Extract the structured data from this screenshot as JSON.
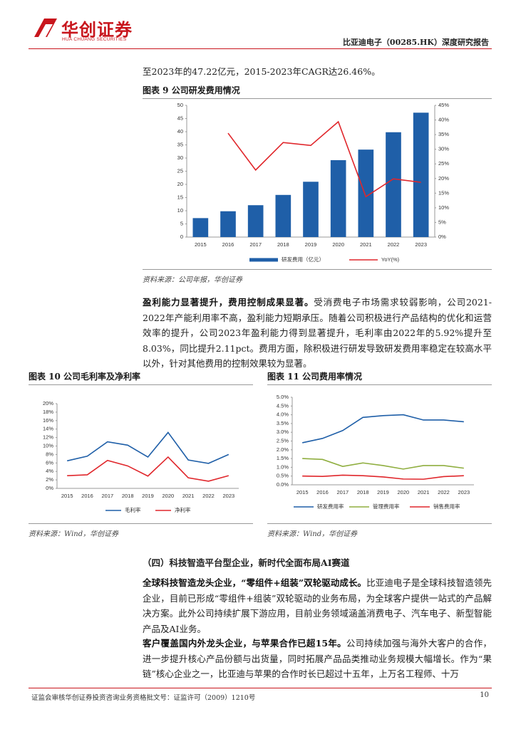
{
  "header": {
    "logo_cn": "华创证券",
    "logo_en": "HUA CHUANG SECURITIES",
    "report_title": "比亚迪电子（00285.HK）深度研究报告"
  },
  "intro": "至2023年的47.22亿元，2015-2023年CAGR达26.46%。",
  "para_profit": {
    "lead": "盈利能力显著提升，费用控制成果显著。",
    "text": "受消费电子市场需求较弱影响，公司2021-2022年产能利用率不高，盈利能力短期承压。随着公司积极进行产品结构的优化和运营效率的提升，公司2023年盈利能力得到显著提升，毛利率由2022年的5.92%提升至8.03%，同比提升2.11pct。费用方面，除积极进行研发导致研发费用率稳定在较高水平以外，针对其他费用的控制效果较为显著。"
  },
  "section_heading": "（四）科技智造平台型企业，新时代全面布局AI赛道",
  "para_leader": {
    "lead": "全球科技智造龙头企业，“零组件+组装”双轮驱动成长。",
    "text": "比亚迪电子是全球科技智造领先企业，目前已形成“零组件+组装”双轮驱动的业务布局，为全球客户提供一站式的产品解决方案。此外公司持续扩展下游应用，目前业务领域涵盖消费电子、汽车电子、新型智能产品及AI业务。"
  },
  "para_apple": {
    "lead": "客户覆盖国内外龙头企业，与苹果合作已超15年。",
    "text": "公司持续加强与海外大客户的合作，进一步提升核心产品份额与出货量，同时拓展产品品类推动业务规模大幅增长。作为“果链”核心企业之一，比亚迪与苹果的合作时长已超过十五年，上万名工程师、十万"
  },
  "footer": {
    "disclaimer": "证监会审核华创证券投资咨询业务资格批文号：证监许可（2009）1210号",
    "page": "10"
  },
  "chart_data": [
    {
      "type": "bar",
      "title": "图表 9 公司研发费用情况",
      "source": "资料来源：公司年报，华创证券",
      "categories": [
        "2015",
        "2016",
        "2017",
        "2018",
        "2019",
        "2020",
        "2021",
        "2022",
        "2023"
      ],
      "series": [
        {
          "name": "研发费用（亿元）",
          "color": "#1f5fa8",
          "type": "bar",
          "values": [
            7.2,
            9.8,
            12.1,
            16.0,
            21.0,
            29.2,
            33.2,
            39.8,
            47.22
          ]
        },
        {
          "name": "YoY(%)",
          "color": "#e0262b",
          "type": "line",
          "axis": "y2",
          "values": [
            null,
            35.5,
            22.9,
            32.3,
            31.3,
            39.4,
            13.8,
            19.9,
            18.7
          ]
        }
      ],
      "ylim": [
        0,
        50
      ],
      "yticks": [
        0,
        5,
        10,
        15,
        20,
        25,
        30,
        35,
        40,
        45,
        50
      ],
      "y2lim": [
        0,
        45
      ],
      "y2ticks": [
        {
          "value": 0,
          "label": "0%"
        },
        {
          "value": 5,
          "label": "5%"
        },
        {
          "value": 10,
          "label": "10%"
        },
        {
          "value": 15,
          "label": "15%"
        },
        {
          "value": 20,
          "label": "20%"
        },
        {
          "value": 25,
          "label": "25%"
        },
        {
          "value": 30,
          "label": "30%"
        },
        {
          "value": 35,
          "label": "35%"
        },
        {
          "value": 40,
          "label": "40%"
        },
        {
          "value": 45,
          "label": "45%"
        }
      ]
    },
    {
      "type": "line",
      "title": "图表 10 公司毛利率及净利率",
      "source": "资料来源：Wind，华创证券",
      "categories": [
        "2015",
        "2016",
        "2017",
        "2018",
        "2019",
        "2020",
        "2021",
        "2022",
        "2023"
      ],
      "series": [
        {
          "name": "毛利率",
          "color": "#1f5fa8",
          "values": [
            6.5,
            7.6,
            11.0,
            10.2,
            7.4,
            13.2,
            6.7,
            5.9,
            8.0
          ]
        },
        {
          "name": "净利率",
          "color": "#e0262b",
          "values": [
            3.0,
            3.2,
            6.6,
            5.3,
            2.9,
            7.4,
            2.5,
            1.7,
            3.0
          ]
        }
      ],
      "ylim": [
        0,
        20
      ],
      "yticks": [
        {
          "value": 0,
          "label": "0%"
        },
        {
          "value": 2,
          "label": "2%"
        },
        {
          "value": 4,
          "label": "4%"
        },
        {
          "value": 6,
          "label": "6%"
        },
        {
          "value": 8,
          "label": "8%"
        },
        {
          "value": 10,
          "label": "10%"
        },
        {
          "value": 12,
          "label": "12%"
        },
        {
          "value": 14,
          "label": "14%"
        },
        {
          "value": 16,
          "label": "16%"
        },
        {
          "value": 18,
          "label": "18%"
        },
        {
          "value": 20,
          "label": "20%"
        }
      ]
    },
    {
      "type": "line",
      "title": "图表 11 公司费用率情况",
      "source": "资料来源：Wind，华创证券",
      "categories": [
        "2015",
        "2016",
        "2017",
        "2018",
        "2019",
        "2020",
        "2021",
        "2022",
        "2023"
      ],
      "series": [
        {
          "name": "研发费用率",
          "color": "#1f5fa8",
          "values": [
            2.4,
            2.65,
            3.1,
            3.85,
            3.95,
            4.0,
            3.7,
            3.7,
            3.6
          ]
        },
        {
          "name": "管理费用率",
          "color": "#8fae3f",
          "values": [
            1.5,
            1.45,
            1.05,
            1.25,
            1.1,
            0.9,
            1.1,
            1.1,
            0.95
          ]
        },
        {
          "name": "销售费用率",
          "color": "#e0262b",
          "values": [
            0.5,
            0.48,
            0.55,
            0.52,
            0.45,
            0.33,
            0.32,
            0.47,
            0.52
          ]
        }
      ],
      "ylim": [
        0,
        5
      ],
      "yticks": [
        {
          "value": 0,
          "label": "0.0%"
        },
        {
          "value": 0.5,
          "label": "0.5%"
        },
        {
          "value": 1,
          "label": "1.0%"
        },
        {
          "value": 1.5,
          "label": "1.5%"
        },
        {
          "value": 2,
          "label": "2.0%"
        },
        {
          "value": 2.5,
          "label": "2.5%"
        },
        {
          "value": 3,
          "label": "3.0%"
        },
        {
          "value": 3.5,
          "label": "3.5%"
        },
        {
          "value": 4,
          "label": "4.0%"
        },
        {
          "value": 4.5,
          "label": "4.5%"
        },
        {
          "value": 5,
          "label": "5.0%"
        }
      ]
    }
  ]
}
